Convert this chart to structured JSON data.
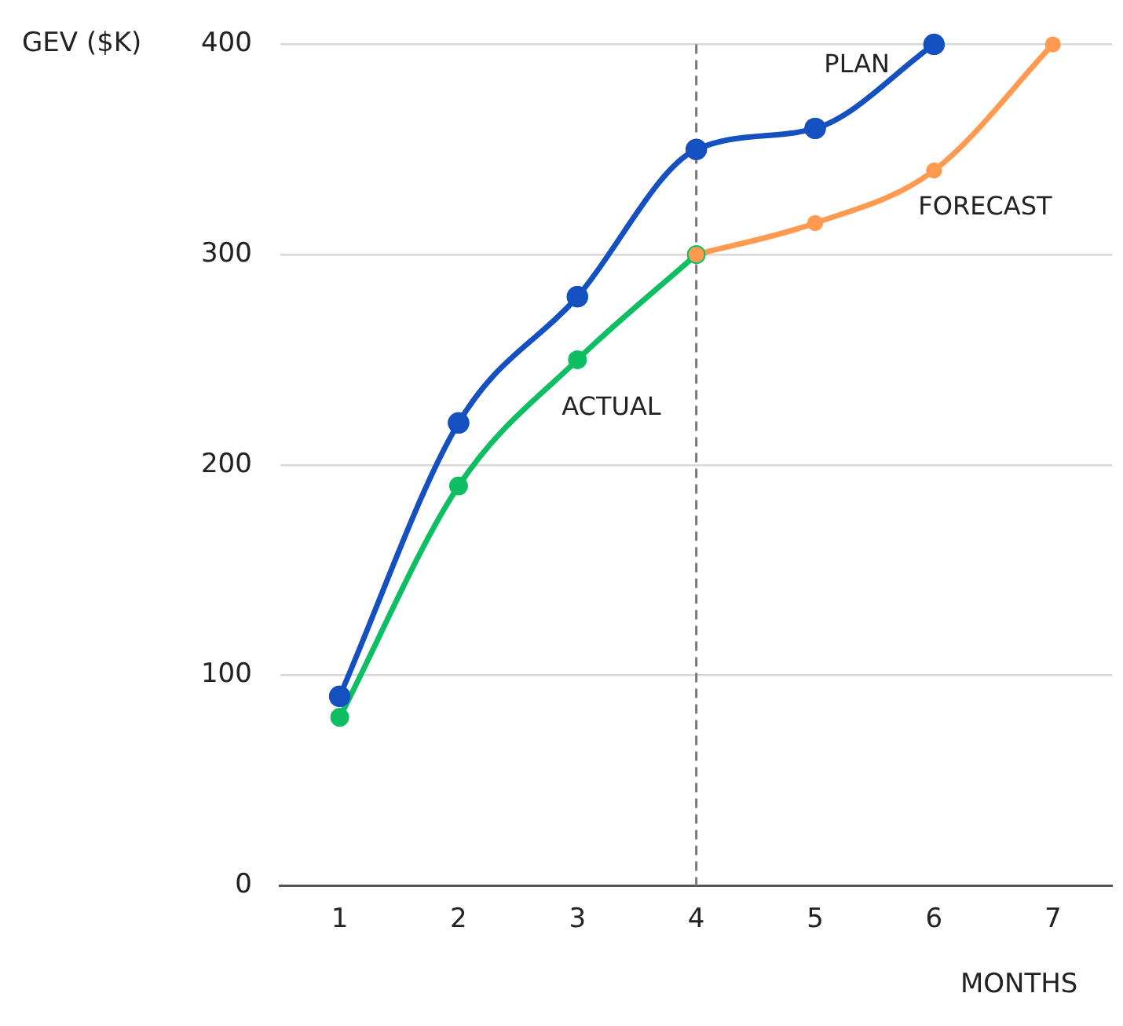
{
  "chart_data": {
    "type": "line",
    "xlabel": "MONTHS",
    "ylabel": "GEV ($K)",
    "categories": [
      "1",
      "2",
      "3",
      "4",
      "5",
      "6",
      "7"
    ],
    "series": [
      {
        "name": "PLAN",
        "color": "#1550c0",
        "values": [
          90,
          220,
          280,
          350,
          360,
          400,
          null
        ]
      },
      {
        "name": "ACTUAL",
        "color": "#0dbf62",
        "values": [
          80,
          190,
          250,
          300,
          null,
          null,
          null
        ]
      },
      {
        "name": "FORECAST",
        "color": "#ff9a50",
        "values": [
          null,
          null,
          null,
          300,
          315,
          340,
          400
        ]
      }
    ],
    "ylim": [
      0,
      400
    ],
    "yticks": [
      0,
      100,
      200,
      300,
      400
    ],
    "grid": "y",
    "legend": false,
    "marker": "circle",
    "line_style": "solid",
    "ref_lines": [
      {
        "axis": "x",
        "value": "4",
        "color": "#777777",
        "line_style": "dashed"
      }
    ]
  }
}
